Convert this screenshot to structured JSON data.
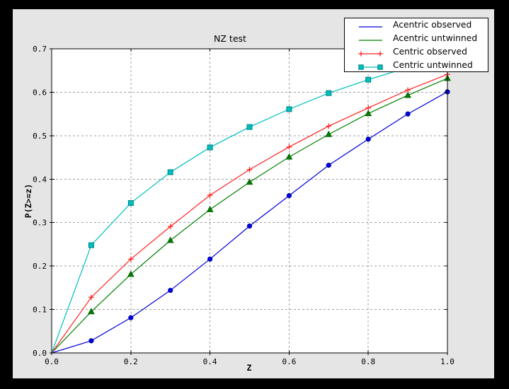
{
  "colors": {
    "background": "#000000",
    "figure_face": "#e5e5e5",
    "plot_face": "#ffffff",
    "grid": "#a0a0a0",
    "axis": "#000000"
  },
  "chart_data": {
    "type": "line",
    "title": "NZ test",
    "xlabel": "Z",
    "ylabel": "P(Z>=z)",
    "xlim": [
      0.0,
      1.0
    ],
    "ylim": [
      0.0,
      0.7
    ],
    "x_tick_values": [
      0.0,
      0.2,
      0.4,
      0.6,
      0.8,
      1.0
    ],
    "x_tick_labels": [
      "0.0",
      "0.2",
      "0.4",
      "0.6",
      "0.8",
      "1.0"
    ],
    "y_tick_values": [
      0.0,
      0.1,
      0.2,
      0.3,
      0.4,
      0.5,
      0.6,
      0.7
    ],
    "y_tick_labels": [
      "0.0",
      "0.1",
      "0.2",
      "0.3",
      "0.4",
      "0.5",
      "0.6",
      "0.7"
    ],
    "grid": {
      "vertical_at": [
        0.2,
        0.4,
        0.6,
        0.8
      ],
      "horizontal_at": [
        0.1,
        0.2,
        0.3,
        0.4,
        0.5,
        0.6
      ],
      "style": "dashed",
      "color": "#a0a0a0"
    },
    "x": [
      0.0,
      0.1,
      0.2,
      0.3,
      0.4,
      0.5,
      0.6,
      0.7,
      0.8,
      0.9,
      1.0
    ],
    "series": [
      {
        "name": "Acentric observed",
        "color": "#0000dd",
        "marker": "circle",
        "marker_edge": "#000099",
        "legend_end_markers": false,
        "values": [
          0.0,
          0.028,
          0.081,
          0.144,
          0.216,
          0.292,
          0.362,
          0.432,
          0.492,
          0.55,
          0.601
        ]
      },
      {
        "name": "Acentric untwinned",
        "color": "#007f00",
        "marker": "triangle",
        "marker_edge": "#005500",
        "legend_end_markers": false,
        "values": [
          0.0,
          0.095,
          0.181,
          0.259,
          0.33,
          0.393,
          0.451,
          0.503,
          0.551,
          0.593,
          0.632
        ]
      },
      {
        "name": "Centric observed",
        "color": "#ff2222",
        "marker": "plus",
        "marker_edge": "#ff2222",
        "legend_end_markers": true,
        "values": [
          0.0,
          0.128,
          0.216,
          0.291,
          0.363,
          0.422,
          0.474,
          0.522,
          0.564,
          0.605,
          0.641
        ]
      },
      {
        "name": "Centric untwinned",
        "color": "#00bfbf",
        "marker": "square",
        "marker_edge": "#008080",
        "legend_end_markers": true,
        "values": [
          0.0,
          0.248,
          0.345,
          0.416,
          0.473,
          0.52,
          0.561,
          0.598,
          0.629,
          0.657,
          0.683
        ]
      }
    ],
    "legend": {
      "location": "upper right"
    }
  }
}
